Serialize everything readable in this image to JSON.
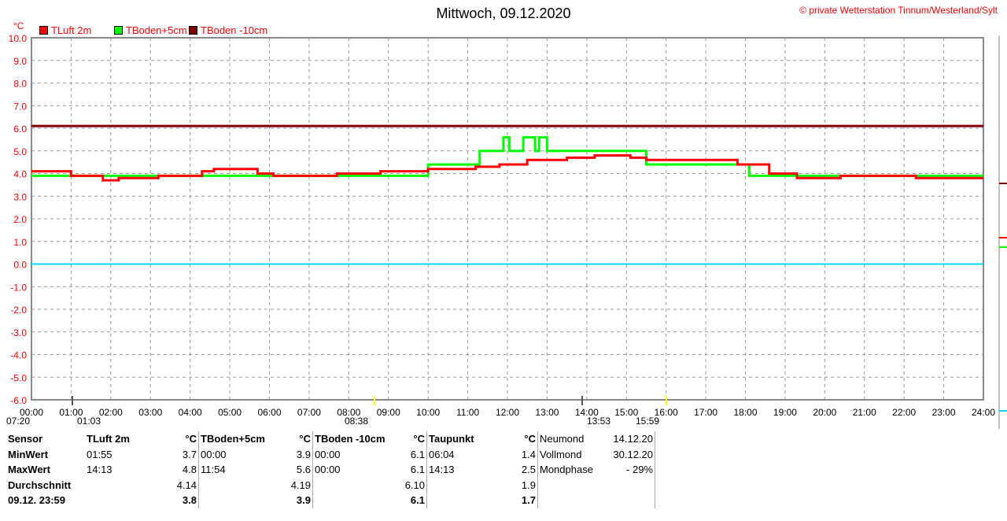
{
  "title": "Mittwoch, 09.12.2020",
  "copyright": "© private Wetterstation Tinnum/Westerland/Sylt",
  "legend": [
    {
      "label": "TLuft 2m",
      "color": "#ff0000"
    },
    {
      "label": "TBoden+5cm",
      "color": "#00ff00"
    },
    {
      "label": "TBoden -10cm",
      "color": "#800000"
    }
  ],
  "chart_data": {
    "type": "line",
    "title": "Mittwoch, 09.12.2020",
    "ylabel": "°C",
    "ylim": [
      -6,
      10
    ],
    "xlim": [
      0,
      24
    ],
    "yticks": [
      "10.0",
      "9.0",
      "8.0",
      "7.0",
      "6.0",
      "5.0",
      "4.0",
      "3.0",
      "2.0",
      "1.0",
      "0.0",
      "-1.0",
      "-2.0",
      "-3.0",
      "-4.0",
      "-5.0",
      "-6.0"
    ],
    "xticks": [
      "00:00",
      "01:00",
      "02:00",
      "03:00",
      "04:00",
      "05:00",
      "06:00",
      "07:00",
      "08:00",
      "09:00",
      "10:00",
      "11:00",
      "12:00",
      "13:00",
      "14:00",
      "15:00",
      "16:00",
      "17:00",
      "18:00",
      "19:00",
      "20:00",
      "21:00",
      "22:00",
      "23:00",
      "24:00"
    ],
    "series": [
      {
        "name": "TLuft 2m",
        "color": "#ff0000",
        "steps": [
          [
            0,
            4.1
          ],
          [
            1,
            3.9
          ],
          [
            1.8,
            3.7
          ],
          [
            2.2,
            3.8
          ],
          [
            3.2,
            3.9
          ],
          [
            4.3,
            4.1
          ],
          [
            4.6,
            4.2
          ],
          [
            5.7,
            4.0
          ],
          [
            6.1,
            3.9
          ],
          [
            7.7,
            4.0
          ],
          [
            8.8,
            4.1
          ],
          [
            10,
            4.2
          ],
          [
            11.2,
            4.3
          ],
          [
            11.8,
            4.4
          ],
          [
            12.5,
            4.6
          ],
          [
            13.5,
            4.7
          ],
          [
            14.2,
            4.8
          ],
          [
            15.1,
            4.7
          ],
          [
            15.5,
            4.6
          ],
          [
            17.8,
            4.4
          ],
          [
            18.6,
            4.0
          ],
          [
            19.3,
            3.8
          ],
          [
            20.4,
            3.9
          ],
          [
            22.3,
            3.8
          ],
          [
            24,
            3.8
          ]
        ]
      },
      {
        "name": "TBoden+5cm",
        "color": "#00ff00",
        "steps": [
          [
            0,
            3.9
          ],
          [
            10,
            4.4
          ],
          [
            11.3,
            5.0
          ],
          [
            11.9,
            5.6
          ],
          [
            12.05,
            5.0
          ],
          [
            12.4,
            5.6
          ],
          [
            12.7,
            5.0
          ],
          [
            12.8,
            5.6
          ],
          [
            13.0,
            5.0
          ],
          [
            15.5,
            4.4
          ],
          [
            18.1,
            3.9
          ],
          [
            24,
            3.9
          ]
        ]
      },
      {
        "name": "TBoden -10cm",
        "color": "#800000",
        "steps": [
          [
            0,
            6.1
          ],
          [
            24,
            6.1
          ]
        ]
      }
    ],
    "zero_line_color": "#00d8ff",
    "astro": {
      "sunrise": "08:38",
      "sunset": "15:59",
      "moonrise": "13:53",
      "moonset": "01:03",
      "daylength": "07:20"
    }
  },
  "table": {
    "headers": [
      "Sensor",
      "TLuft 2m",
      "°C",
      "TBoden+5cm",
      "°C",
      "TBoden -10cm",
      "°C",
      "Taupunkt",
      "°C"
    ],
    "rows": [
      [
        "MinWert",
        "01:55",
        "3.7",
        "00:00",
        "3.9",
        "00:00",
        "6.1",
        "06:04",
        "1.4"
      ],
      [
        "MaxWert",
        "14:13",
        "4.8",
        "11:54",
        "5.6",
        "00:00",
        "6.1",
        "14:13",
        "2.5"
      ],
      [
        "Durchschnitt",
        "",
        "4.14",
        "",
        "4.19",
        "",
        "6.10",
        "",
        "1.9"
      ],
      [
        "09.12. 23:59",
        "",
        "3.8",
        "",
        "3.9",
        "",
        "6.1",
        "",
        "1.7"
      ]
    ],
    "moon": [
      [
        "Neumond",
        "14.12.20"
      ],
      [
        "Vollmond",
        "30.12.20"
      ],
      [
        "Mondphase",
        "- 29%"
      ]
    ]
  }
}
